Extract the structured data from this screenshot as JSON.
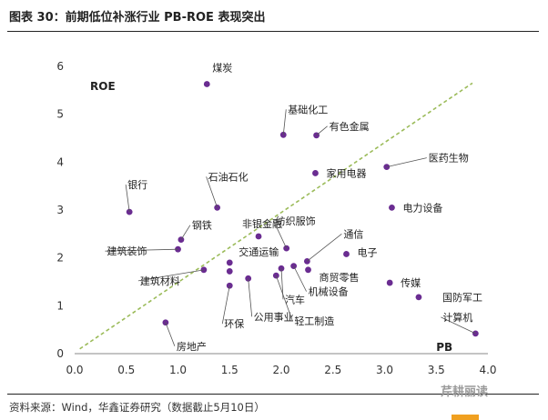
{
  "title": "图表 30：前期低位补涨行业 PB-ROE 表现突出",
  "source": "资料来源：Wind，华鑫证券研究（数据截止5月10日）",
  "watermark": "芹耕丽读",
  "chart_data": {
    "type": "scatter",
    "xlabel": "PB",
    "ylabel": "ROE",
    "xlim": [
      0.0,
      4.0
    ],
    "ylim": [
      0,
      6
    ],
    "xticks": [
      "0.0",
      "0.5",
      "1.0",
      "1.5",
      "2.0",
      "2.5",
      "3.0",
      "3.5",
      "4.0"
    ],
    "yticks": [
      "0",
      "1",
      "2",
      "3",
      "4",
      "5",
      "6"
    ],
    "grid": false,
    "point_color": "#6a2c91",
    "trend_color": "#9bbb59",
    "trendline": {
      "x": [
        0.05,
        3.85
      ],
      "y": [
        0.1,
        5.65
      ]
    },
    "points": [
      {
        "label": "煤炭",
        "x": 1.28,
        "y": 5.63
      },
      {
        "label": "基础化工",
        "x": 2.02,
        "y": 4.57
      },
      {
        "label": "有色金属",
        "x": 2.34,
        "y": 4.56
      },
      {
        "label": "医药生物",
        "x": 3.02,
        "y": 3.9
      },
      {
        "label": "家用电器",
        "x": 2.33,
        "y": 3.77
      },
      {
        "label": "石油石化",
        "x": 1.38,
        "y": 3.05
      },
      {
        "label": "电力设备",
        "x": 3.07,
        "y": 3.05
      },
      {
        "label": "银行",
        "x": 0.53,
        "y": 2.96
      },
      {
        "label": "钢铁",
        "x": 1.03,
        "y": 2.38
      },
      {
        "label": "非银金融",
        "x": 1.78,
        "y": 2.45
      },
      {
        "label": "建筑装饰",
        "x": 1.0,
        "y": 2.18
      },
      {
        "label": "纺织服饰",
        "x": 2.05,
        "y": 2.2
      },
      {
        "label": "通信",
        "x": 2.25,
        "y": 1.93
      },
      {
        "label": "电子",
        "x": 2.63,
        "y": 2.08
      },
      {
        "label": "交通运输",
        "x": 1.5,
        "y": 1.9
      },
      {
        "label": "建筑材料",
        "x": 1.25,
        "y": 1.75
      },
      {
        "label": "商贸零售",
        "x": 2.26,
        "y": 1.75
      },
      {
        "label": "机械设备",
        "x": 2.12,
        "y": 1.83
      },
      {
        "label": "汽车",
        "x": 2.0,
        "y": 1.78
      },
      {
        "label": "传媒",
        "x": 3.05,
        "y": 1.48
      },
      {
        "label": "国防军工",
        "x": 3.33,
        "y": 1.18
      },
      {
        "label": "环保",
        "x": 1.5,
        "y": 1.42
      },
      {
        "label": "公用事业",
        "x": 1.68,
        "y": 1.57
      },
      {
        "label": "轻工制造",
        "x": 1.95,
        "y": 1.63
      },
      {
        "label": "房地产",
        "x": 0.88,
        "y": 0.65
      },
      {
        "label": "计算机",
        "x": 3.88,
        "y": 0.42
      },
      {
        "label": "",
        "x": 1.5,
        "y": 1.72
      }
    ]
  }
}
